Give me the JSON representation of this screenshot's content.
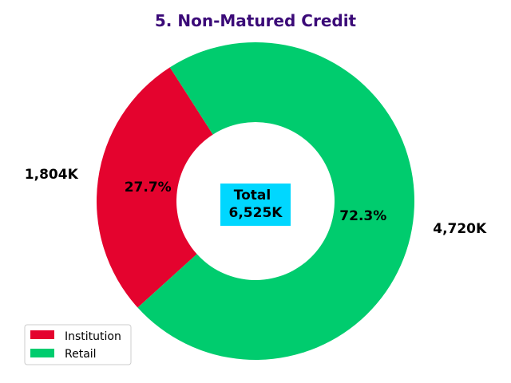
{
  "chart_data": {
    "type": "pie",
    "donut": true,
    "title": "5. Non-Matured Credit",
    "center_label": {
      "line1": "Total",
      "line2": "6,525K"
    },
    "slices": [
      {
        "label": "Institution",
        "value": 1804,
        "percent_label": "27.7%",
        "value_label": "1,804K",
        "color": "#E4032E"
      },
      {
        "label": "Retail",
        "value": 4720,
        "percent_label": "72.3%",
        "value_label": "4,720K",
        "color": "#00CC6E"
      }
    ],
    "legend": {
      "position": "lower-left",
      "entries": [
        "Institution",
        "Retail"
      ]
    }
  },
  "colors": {
    "title": "#3B0A78",
    "center_box": "#00D7FF",
    "text": "#000000"
  }
}
